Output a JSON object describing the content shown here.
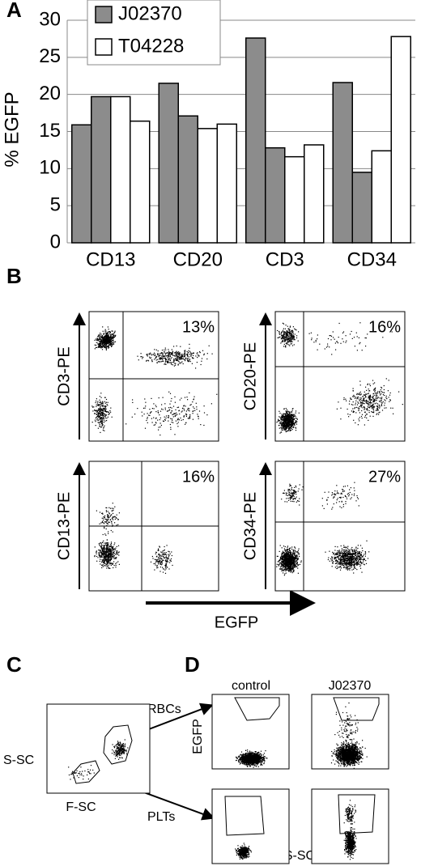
{
  "chart_data": {
    "type": "bar",
    "panel_label": "A",
    "ylabel": "% EGFP",
    "categories": [
      "CD13",
      "CD20",
      "CD3",
      "CD34"
    ],
    "series": [
      {
        "name": "J02370",
        "color": "#8c8c8c",
        "values": [
          [
            15.9,
            19.7
          ],
          [
            21.5,
            17.1
          ],
          [
            27.6,
            12.8
          ],
          [
            21.6,
            9.5
          ]
        ]
      },
      {
        "name": "T04228",
        "color": "#ffffff",
        "values": [
          [
            19.7,
            16.4
          ],
          [
            15.4,
            16.0
          ],
          [
            11.6,
            13.2
          ],
          [
            12.4,
            27.8
          ]
        ]
      }
    ],
    "ylim": [
      0,
      30
    ],
    "yticks": [
      0,
      5,
      10,
      15,
      20,
      25,
      30
    ],
    "grid": true
  },
  "panel_b": {
    "label": "B",
    "xlabel": "EGFP",
    "plots": [
      {
        "ylabel": "CD3-PE",
        "percent": "13%"
      },
      {
        "ylabel": "CD20-PE",
        "percent": "16%"
      },
      {
        "ylabel": "CD13-PE",
        "percent": "16%"
      },
      {
        "ylabel": "CD34-PE",
        "percent": "27%"
      }
    ]
  },
  "panel_c": {
    "label": "C",
    "ylabel": "S-SC",
    "xlabel": "F-SC",
    "gates": [
      "RBCs",
      "PLTs"
    ]
  },
  "panel_d": {
    "label": "D",
    "columns": [
      "control",
      "J02370"
    ],
    "ylabel": "EGFP",
    "xlabel": "S-SC"
  }
}
